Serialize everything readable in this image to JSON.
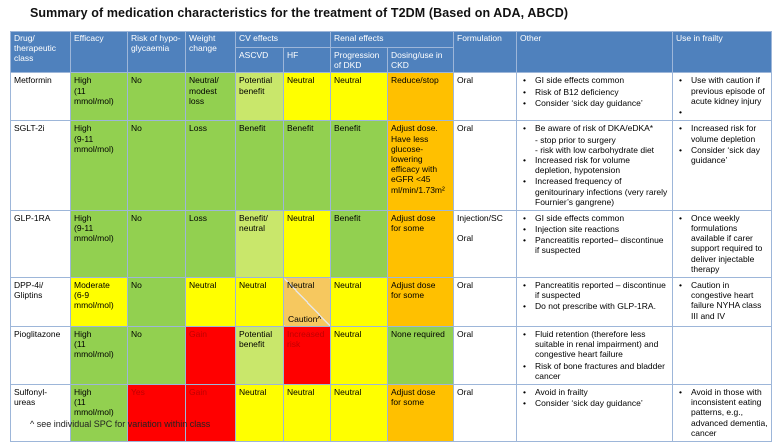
{
  "title": "Summary of medication characteristics for the treatment of T2DM (Based on ADA, ABCD)",
  "footnote": "^ see individual SPC for variation within class",
  "colors": {
    "header_blue": "#4f81bd",
    "green": "#92d050",
    "light_green": "#c9e76b",
    "yellow": "#ffff00",
    "orange": "#ffc000",
    "red": "#ff0000",
    "dark_red_text": "#c00000",
    "tan_caution": "#f6c85f",
    "border": "#9db6d9"
  },
  "header": {
    "groups": {
      "cv": "CV effects",
      "renal": "Renal effects"
    },
    "columns": {
      "drug": "Drug/ therapeutic class",
      "efficacy": "Efficacy",
      "hypo": "Risk of hypo-glycaemia",
      "weight": "Weight change",
      "ascvd": "ASCVD",
      "hf": "HF",
      "dkd": "Progression of DKD",
      "ckd": "Dosing/use in CKD",
      "formulation": "Formulation",
      "other": "Other",
      "frailty": "Use in frailty"
    }
  },
  "rows": [
    {
      "drug": "Metformin",
      "efficacy": {
        "text": "High\n(11\nmmol/mol)",
        "color": "green"
      },
      "hypo": {
        "text": "No",
        "color": "green"
      },
      "weight": {
        "text": "Neutral/\nmodest\nloss",
        "color": "green"
      },
      "ascvd": {
        "text": "Potential\nbenefit",
        "color": "lgreen"
      },
      "hf": {
        "text": "Neutral",
        "color": "yellow"
      },
      "dkd": {
        "text": "Neutral",
        "color": "yellow"
      },
      "ckd": {
        "text": "Reduce/stop",
        "color": "orange"
      },
      "formulation": "Oral",
      "other": [
        {
          "text": "GI side effects common"
        },
        {
          "text": "Risk of B12 deficiency"
        },
        {
          "text": "Consider ‘sick day guidance’"
        }
      ],
      "frailty": [
        {
          "text": "Use with caution if previous episode of acute kidney injury"
        },
        {
          "text": ""
        }
      ]
    },
    {
      "drug": "SGLT-2i",
      "efficacy": {
        "text": "High\n(9-11\nmmol/mol)",
        "color": "green"
      },
      "hypo": {
        "text": "No",
        "color": "green"
      },
      "weight": {
        "text": "Loss",
        "color": "green"
      },
      "ascvd": {
        "text": "Benefit",
        "color": "green"
      },
      "hf": {
        "text": "Benefit",
        "color": "green"
      },
      "dkd": {
        "text": "Benefit",
        "color": "green"
      },
      "ckd": {
        "text": "Adjust dose.\nHave less\nglucose-\nlowering\nefficacy with\neGFR <45\nml/min/1.73m²",
        "color": "orange"
      },
      "formulation": "Oral",
      "other": [
        {
          "text": "Be aware of risk of DKA/eDKA*",
          "subs": [
            "- stop prior to surgery",
            "- risk with low carbohydrate diet"
          ]
        },
        {
          "text": "Increased risk for volume depletion, hypotension"
        },
        {
          "text": "Increased frequency of genitourinary infections (very rarely Fournier’s gangrene)"
        }
      ],
      "frailty": [
        {
          "text": "Increased risk for volume depletion"
        },
        {
          "text": "Consider ‘sick day guidance’"
        }
      ]
    },
    {
      "drug": "GLP-1RA",
      "efficacy": {
        "text": "High\n(9-11\nmmol/mol)",
        "color": "green"
      },
      "hypo": {
        "text": "No",
        "color": "green"
      },
      "weight": {
        "text": "Loss",
        "color": "green"
      },
      "ascvd": {
        "text": "Benefit/\nneutral",
        "color": "lgreen"
      },
      "hf": {
        "text": "Neutral",
        "color": "yellow"
      },
      "dkd": {
        "text": "Benefit",
        "color": "green"
      },
      "ckd": {
        "text": "Adjust dose\nfor some",
        "color": "orange"
      },
      "formulation": "Injection/SC\n\nOral",
      "other": [
        {
          "text": "GI side effects common"
        },
        {
          "text": "Injection site reactions"
        },
        {
          "text": "Pancreatitis reported– discontinue if suspected"
        }
      ],
      "frailty": [
        {
          "text": "Once weekly formulations available if carer support required to deliver injectable therapy"
        }
      ]
    },
    {
      "drug": "DPP-4i/\nGliptins",
      "efficacy": {
        "text": "Moderate\n(6-9\nmmol/mol)",
        "color": "yellow"
      },
      "hypo": {
        "text": "No",
        "color": "green"
      },
      "weight": {
        "text": "Neutral",
        "color": "yellow"
      },
      "ascvd": {
        "text": "Neutral",
        "color": "yellow"
      },
      "hf": {
        "split": true,
        "top": "Neutral",
        "bottom": "Caution^",
        "color": "tan"
      },
      "dkd": {
        "text": "Neutral",
        "color": "yellow"
      },
      "ckd": {
        "text": "Adjust dose\nfor some",
        "color": "orange"
      },
      "formulation": "Oral",
      "other": [
        {
          "text": "Pancreatitis reported – discontinue if suspected"
        },
        {
          "text": "Do not prescribe with GLP-1RA."
        }
      ],
      "frailty": [
        {
          "text": "Caution in congestive heart failure NYHA class III and IV"
        }
      ]
    },
    {
      "drug": "Pioglitazone",
      "efficacy": {
        "text": "High\n(11\nmmol/mol)",
        "color": "green"
      },
      "hypo": {
        "text": "No",
        "color": "green"
      },
      "weight": {
        "text": "Gain",
        "color": "red"
      },
      "ascvd": {
        "text": "Potential\nbenefit",
        "color": "lgreen"
      },
      "hf": {
        "text": "Increased\nrisk",
        "color": "red"
      },
      "dkd": {
        "text": "Neutral",
        "color": "yellow"
      },
      "ckd": {
        "text": "None required",
        "color": "green"
      },
      "formulation": "Oral",
      "other": [
        {
          "text": "Fluid retention (therefore less suitable in renal impairment) and congestive heart failure"
        },
        {
          "text": "Risk of bone fractures and bladder cancer"
        }
      ],
      "frailty": []
    },
    {
      "drug": "Sulfonyl-\nureas",
      "efficacy": {
        "text": "High\n(11\nmmol/mol)",
        "color": "green"
      },
      "hypo": {
        "text": "Yes",
        "color": "red"
      },
      "weight": {
        "text": "Gain",
        "color": "red"
      },
      "ascvd": {
        "text": "Neutral",
        "color": "yellow"
      },
      "hf": {
        "text": "Neutral",
        "color": "yellow"
      },
      "dkd": {
        "text": "Neutral",
        "color": "yellow"
      },
      "ckd": {
        "text": "Adjust dose\nfor some",
        "color": "orange"
      },
      "formulation": "Oral",
      "other": [
        {
          "text": "Avoid in frailty"
        },
        {
          "text": "Consider ‘sick day guidance’"
        }
      ],
      "frailty": [
        {
          "text": "Avoid in those with inconsistent eating patterns, e.g., advanced dementia, cancer"
        }
      ]
    }
  ]
}
